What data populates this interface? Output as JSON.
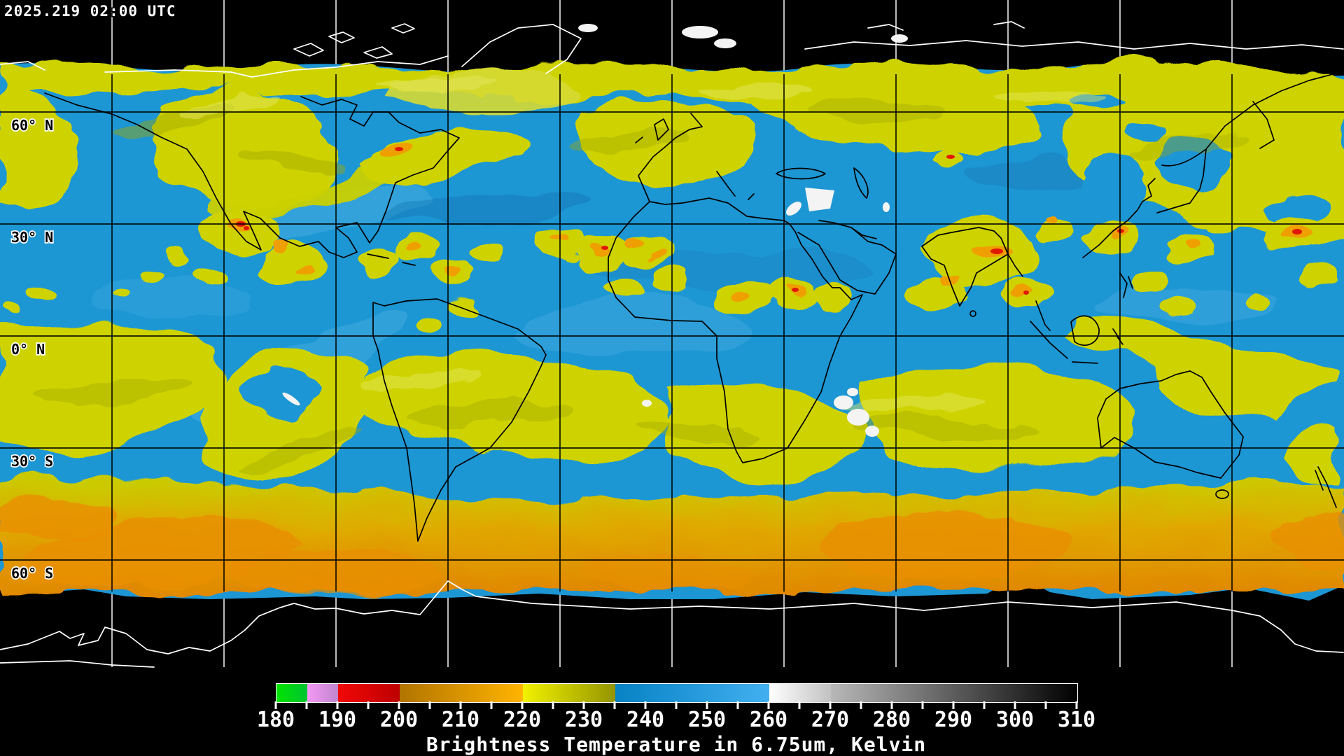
{
  "header": {
    "timestamp": "2025.219 02:00 UTC"
  },
  "map": {
    "latitude_labels": [
      {
        "text": "60° N"
      },
      {
        "text": "30° N"
      },
      {
        "text": "0° N"
      },
      {
        "text": "30° S"
      },
      {
        "text": "60° S"
      }
    ],
    "grid_spacing_deg": 30,
    "colors": {
      "space_background": "#000000",
      "moist_air_blue": "#1D96D4",
      "cloud_yellow": "#CED300",
      "cloud_olive": "#A2A800",
      "cold_cloud_orange": "#EF9F00",
      "deep_cold_orange": "#E08800",
      "overshoot_red": "#E01800",
      "very_cold_white": "#F4F4F4",
      "coastline_on_data": "#000000",
      "coastline_on_space": "#ffffff",
      "grid_on_data": "#000000",
      "grid_on_space": "#ffffff"
    }
  },
  "legend": {
    "title": "Brightness Temperature in 6.75um, Kelvin",
    "min": 180,
    "max": 310,
    "major_tick_step": 10,
    "minor_tick_step": 5,
    "tick_labels": [
      "180",
      "190",
      "200",
      "210",
      "220",
      "230",
      "240",
      "250",
      "260",
      "270",
      "280",
      "290",
      "300",
      "310"
    ],
    "segments": [
      {
        "from": 180,
        "to": 185,
        "start": "#00E400",
        "end": "#00C432"
      },
      {
        "from": 185,
        "to": 190,
        "start": "#F598F5",
        "end": "#BF86CD"
      },
      {
        "from": 190,
        "to": 200,
        "start": "#F20808",
        "end": "#BE0000"
      },
      {
        "from": 200,
        "to": 220,
        "start": "#B27400",
        "end": "#FFB400"
      },
      {
        "from": 220,
        "to": 235,
        "start": "#F2F200",
        "end": "#949400"
      },
      {
        "from": 235,
        "to": 260,
        "start": "#0782C4",
        "end": "#42B0F0"
      },
      {
        "from": 260,
        "to": 270,
        "start": "#FFFFFF",
        "end": "#C2C2C2"
      },
      {
        "from": 270,
        "to": 310,
        "start": "#B8B8B8",
        "end": "#000000"
      }
    ]
  }
}
